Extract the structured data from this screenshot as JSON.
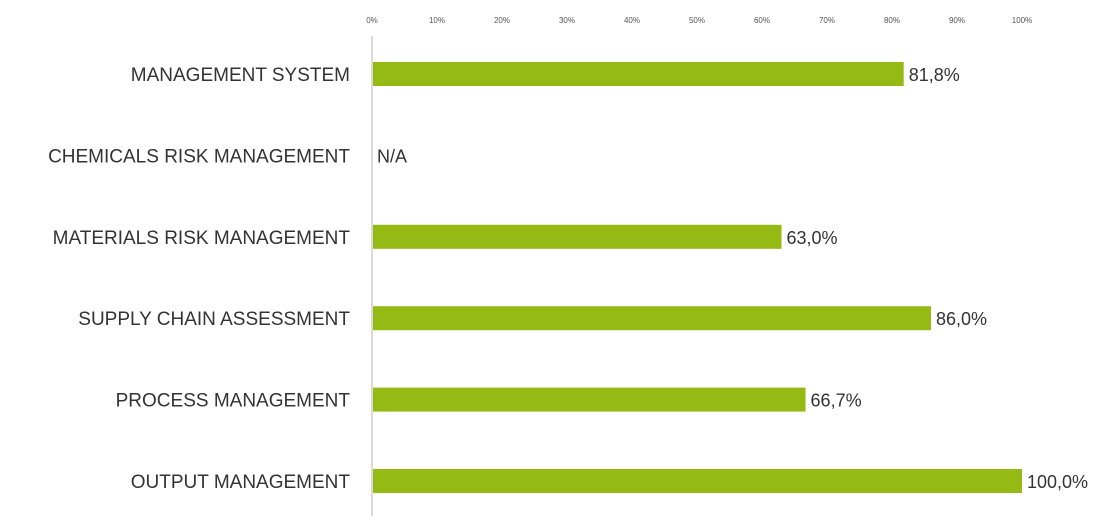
{
  "chart_data": {
    "type": "bar",
    "orientation": "horizontal",
    "categories": [
      "MANAGEMENT SYSTEM",
      "CHEMICALS RISK MANAGEMENT",
      "MATERIALS RISK MANAGEMENT",
      "SUPPLY CHAIN ASSESSMENT",
      "PROCESS MANAGEMENT",
      "OUTPUT MANAGEMENT"
    ],
    "values": [
      81.8,
      null,
      63.0,
      86.0,
      66.7,
      100.0
    ],
    "value_labels": [
      "81,8%",
      "N/A",
      "63,0%",
      "86,0%",
      "66,7%",
      "100,0%"
    ],
    "xlim": [
      0,
      100
    ],
    "x_ticks": [
      "0%",
      "10%",
      "20%",
      "30%",
      "40%",
      "50%",
      "60%",
      "70%",
      "80%",
      "90%",
      "100%"
    ],
    "axis_position": "top",
    "grid": false,
    "legend": "none",
    "bar_color": "#96ba14",
    "axis_color": "#b5b5b5"
  }
}
